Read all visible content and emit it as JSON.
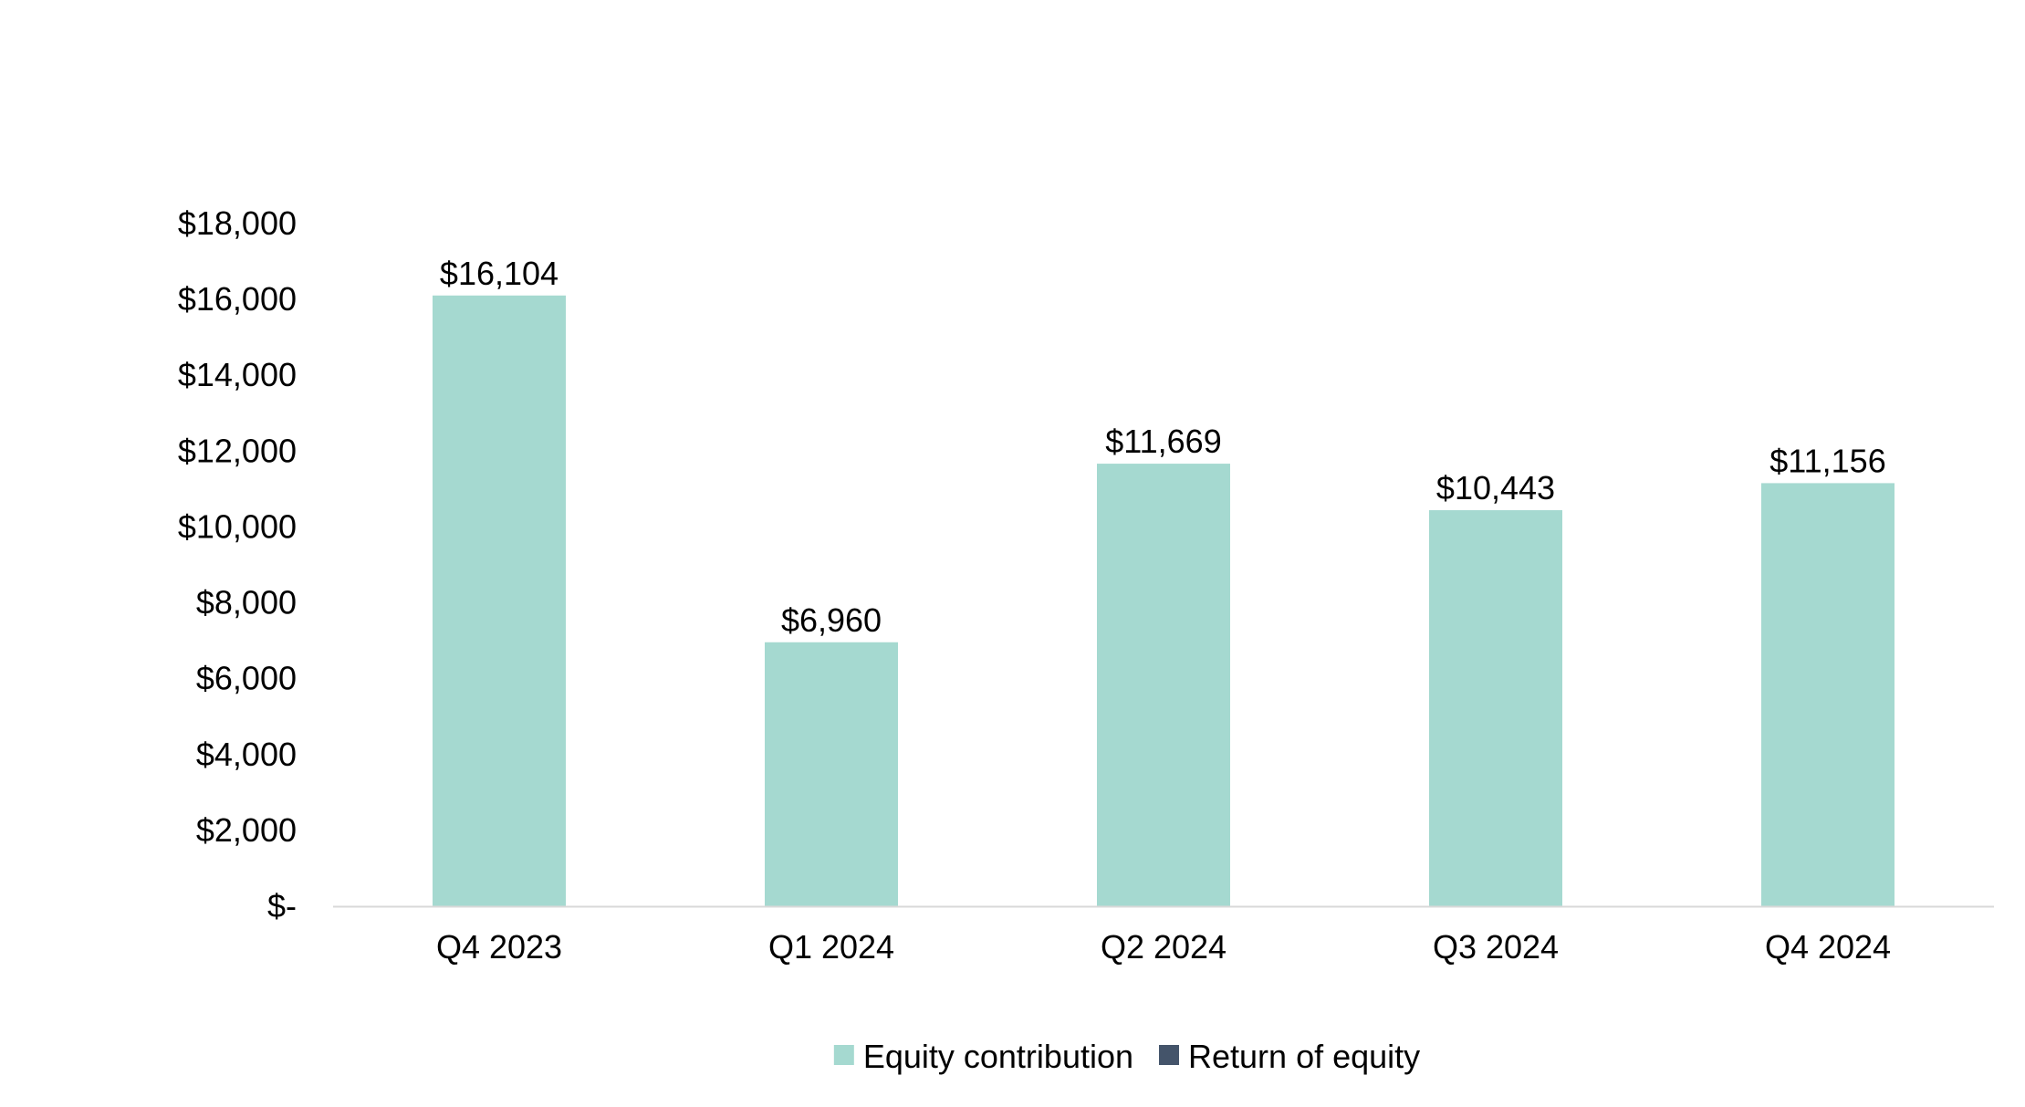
{
  "chart_data": {
    "type": "bar",
    "categories": [
      "Q4 2023",
      "Q1 2024",
      "Q2 2024",
      "Q3 2024",
      "Q4 2024"
    ],
    "series": [
      {
        "name": "Equity contribution",
        "color": "#a5d9d0",
        "values": [
          16104,
          6960,
          11669,
          10443,
          11156
        ],
        "value_labels": [
          "$16,104",
          "$6,960",
          "$11,669",
          "$10,443",
          "$11,156"
        ]
      },
      {
        "name": "Return of equity",
        "color": "#44546a",
        "values": [
          0,
          0,
          0,
          0,
          0
        ],
        "value_labels": []
      }
    ],
    "ylim": [
      0,
      18000
    ],
    "y_ticks": [
      0,
      2000,
      4000,
      6000,
      8000,
      10000,
      12000,
      14000,
      16000,
      18000
    ],
    "y_tick_labels": [
      "$-",
      "$2,000",
      "$4,000",
      "$6,000",
      "$8,000",
      "$10,000",
      "$12,000",
      "$14,000",
      "$16,000",
      "$18,000"
    ],
    "title": "",
    "xlabel": "",
    "ylabel": "",
    "grid": false,
    "legend_position": "bottom",
    "axis_color": "#d9d9d9"
  }
}
